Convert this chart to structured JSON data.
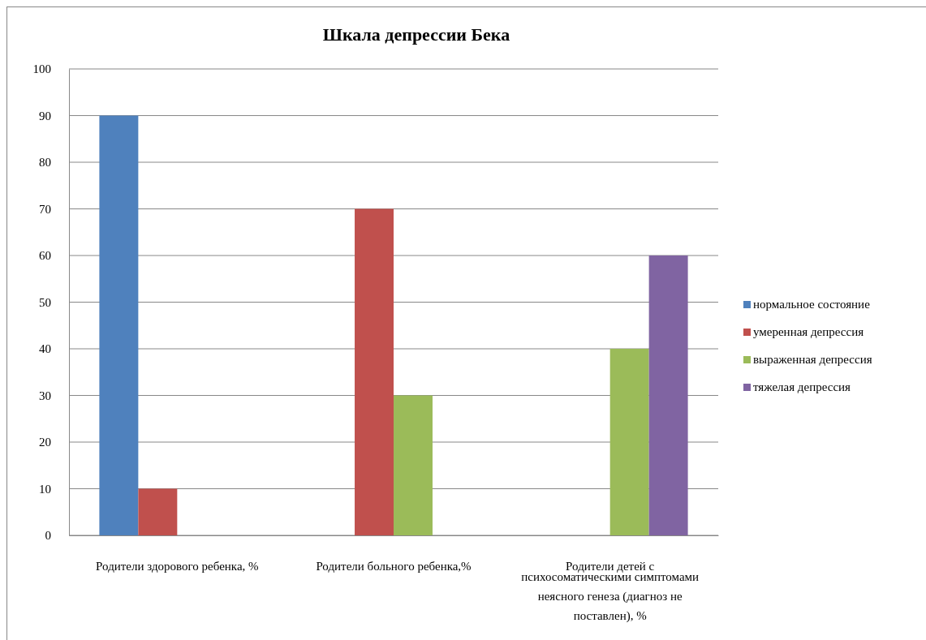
{
  "chart_data": {
    "type": "bar",
    "title": "Шкала депрессии Бека",
    "categories": [
      "Родители здорового ребенка, %",
      "Родители больного ребенка,%",
      "Родители детей с психосоматическими симптомами неясного генеза (диагноз не поставлен), %"
    ],
    "series": [
      {
        "name": "нормальное состояние",
        "color": "#4f81bd",
        "values": [
          90,
          0,
          0
        ]
      },
      {
        "name": "умеренная депрессия",
        "color": "#c0504d",
        "values": [
          10,
          70,
          0
        ]
      },
      {
        "name": "выраженная депрессия",
        "color": "#9bbb59",
        "values": [
          0,
          30,
          40
        ]
      },
      {
        "name": "тяжелая депрессия",
        "color": "#8064a2",
        "values": [
          0,
          0,
          60
        ]
      }
    ],
    "ylim": [
      0,
      100
    ],
    "yticks": [
      0,
      10,
      20,
      30,
      40,
      50,
      60,
      70,
      80,
      90,
      100
    ],
    "grid": "y",
    "legend": "right"
  }
}
